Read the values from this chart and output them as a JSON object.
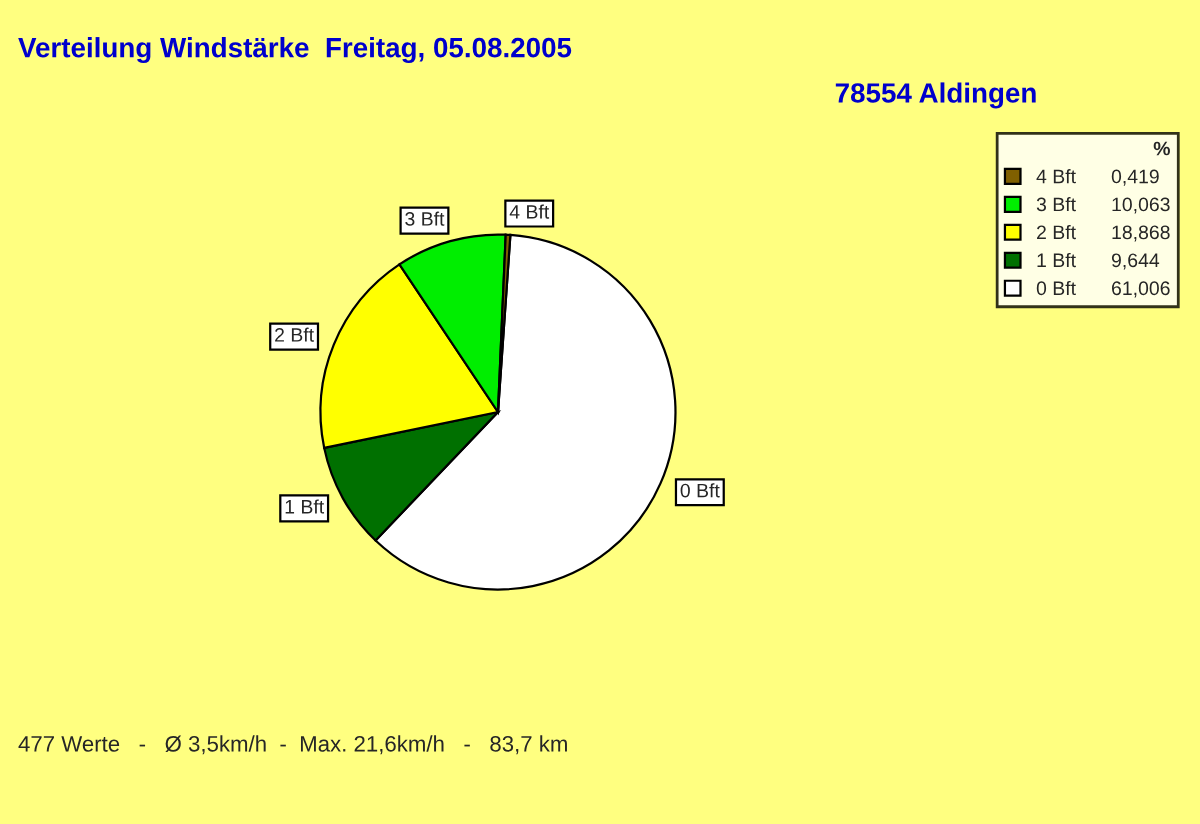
{
  "chart_data": {
    "type": "pie",
    "title": "Verteilung Windstärke  Freitag, 05.08.2005",
    "subtitle": "78554 Aldingen",
    "categories": [
      "0 Bft",
      "1 Bft",
      "2 Bft",
      "3 Bft",
      "4 Bft"
    ],
    "values": [
      61.006,
      9.644,
      18.868,
      10.063,
      0.419
    ],
    "value_labels": [
      "61,006",
      "9,644",
      "18,868",
      "10,063",
      "0,419"
    ],
    "colors": [
      "#ffffff",
      "#007000",
      "#ffff00",
      "#00ee00",
      "#806000"
    ],
    "legend_title": "%",
    "legend": "top right",
    "annotations": [
      "477 Werte   -   Ø 3,5km/h  -  Max. 21,6km/h   -   83,7 km"
    ]
  }
}
